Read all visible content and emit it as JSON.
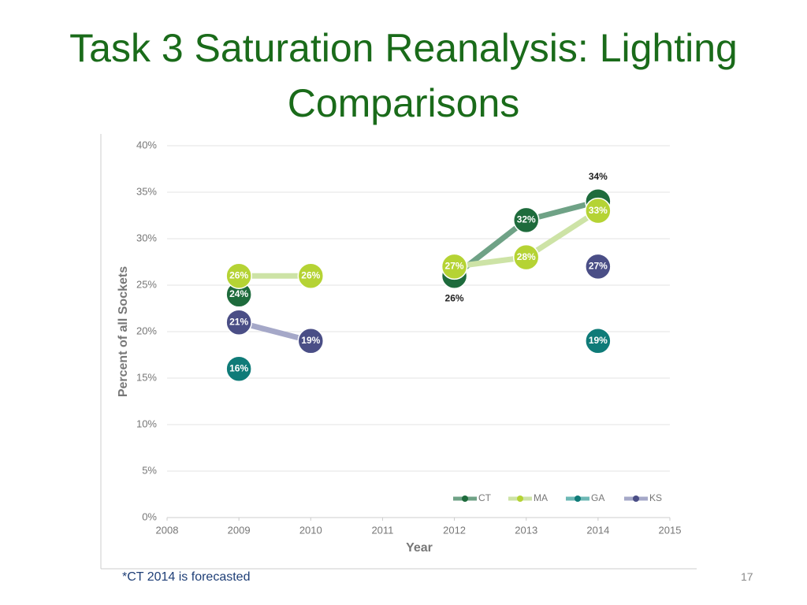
{
  "title": "Task 3 Saturation Reanalysis: Lighting Comparisons",
  "footnote": "*CT 2014 is forecasted",
  "page_number": "17",
  "chart_data": {
    "type": "line",
    "x_label": "Year",
    "y_label": "Percent of all Sockets",
    "x": [
      2009,
      2010,
      2011,
      2012,
      2013,
      2014
    ],
    "xlim": [
      2008,
      2015
    ],
    "xticks": [
      2008,
      2009,
      2010,
      2011,
      2012,
      2013,
      2014,
      2015
    ],
    "ylim": [
      0,
      40
    ],
    "yticks": [
      {
        "value": 0,
        "label": "0%"
      },
      {
        "value": 5,
        "label": "5%"
      },
      {
        "value": 10,
        "label": "10%"
      },
      {
        "value": 15,
        "label": "15%"
      },
      {
        "value": 20,
        "label": "20%"
      },
      {
        "value": 25,
        "label": "25%"
      },
      {
        "value": 30,
        "label": "30%"
      },
      {
        "value": 35,
        "label": "35%"
      },
      {
        "value": 40,
        "label": "40%"
      }
    ],
    "grid": true,
    "legend": "bottom-right",
    "series": [
      {
        "name": "CT",
        "color": "#1e6b3c",
        "line_color": "#6fa286",
        "values": [
          24,
          null,
          null,
          26,
          32,
          34
        ],
        "value_labels": [
          "24%",
          null,
          null,
          "26%",
          "32%",
          "34%"
        ]
      },
      {
        "name": "MA",
        "color": "#b5d334",
        "line_color": "#cde3a6",
        "values": [
          26,
          26,
          null,
          27,
          28,
          33
        ],
        "value_labels": [
          "26%",
          "26%",
          null,
          "27%",
          "28%",
          "33%"
        ]
      },
      {
        "name": "GA",
        "color": "#0f7b78",
        "line_color": "#6db8b5",
        "values": [
          16,
          null,
          null,
          null,
          null,
          19
        ],
        "value_labels": [
          "16%",
          null,
          null,
          null,
          null,
          "19%"
        ]
      },
      {
        "name": "KS",
        "color": "#4a4e86",
        "line_color": "#a5a8c8",
        "values": [
          21,
          19,
          null,
          null,
          null,
          27
        ],
        "value_labels": [
          "21%",
          "19%",
          null,
          null,
          null,
          "27%"
        ]
      }
    ]
  }
}
